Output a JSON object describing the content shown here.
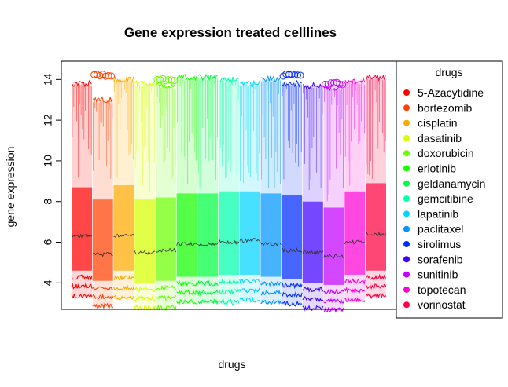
{
  "chart_data": {
    "type": "box",
    "title": "Gene expression treated celllines",
    "xlabel": "drugs",
    "ylabel": "gene expression",
    "ylim": [
      2.7,
      14.9
    ],
    "yticks": [
      4,
      6,
      8,
      10,
      12,
      14
    ],
    "ytick_labels": [
      "4",
      "6",
      "8",
      "10",
      "12",
      "14"
    ],
    "legend": {
      "title": "drugs",
      "placement": "right"
    },
    "series": [
      {
        "name": "5-Azacytidine",
        "color": "#ff0000",
        "q1": 4.6,
        "median": 6.3,
        "q3": 8.7,
        "whisker_low": 3.3,
        "whisker_high": 13.8,
        "outlier_high": null
      },
      {
        "name": "bortezomib",
        "color": "#ff4000",
        "q1": 4.1,
        "median": 5.4,
        "q3": 8.1,
        "whisker_low": 2.8,
        "whisker_high": 13.0,
        "outlier_high": 14.2
      },
      {
        "name": "cisplatin",
        "color": "#ffaa00",
        "q1": 4.6,
        "median": 6.3,
        "q3": 8.8,
        "whisker_low": 3.2,
        "whisker_high": 14.0,
        "outlier_high": null
      },
      {
        "name": "dasatinib",
        "color": "#d5ff00",
        "q1": 4.0,
        "median": 5.5,
        "q3": 8.1,
        "whisker_low": 2.7,
        "whisker_high": 13.8,
        "outlier_high": null
      },
      {
        "name": "doxorubicin",
        "color": "#6aff00",
        "q1": 4.1,
        "median": 5.6,
        "q3": 8.2,
        "whisker_low": 2.7,
        "whisker_high": 13.7,
        "outlier_high": 14.0
      },
      {
        "name": "erlotinib",
        "color": "#15ff00",
        "q1": 4.3,
        "median": 5.9,
        "q3": 8.4,
        "whisker_low": 3.0,
        "whisker_high": 14.1,
        "outlier_high": null
      },
      {
        "name": "geldanamycin",
        "color": "#00ff40",
        "q1": 4.3,
        "median": 5.9,
        "q3": 8.4,
        "whisker_low": 3.0,
        "whisker_high": 14.1,
        "outlier_high": null
      },
      {
        "name": "gemcitibine",
        "color": "#00ffaa",
        "q1": 4.4,
        "median": 6.0,
        "q3": 8.5,
        "whisker_low": 3.0,
        "whisker_high": 14.0,
        "outlier_high": null
      },
      {
        "name": "lapatinib",
        "color": "#00d5ff",
        "q1": 4.4,
        "median": 6.1,
        "q3": 8.5,
        "whisker_low": 3.1,
        "whisker_high": 13.8,
        "outlier_high": null
      },
      {
        "name": "paclitaxel",
        "color": "#0095ff",
        "q1": 4.3,
        "median": 5.9,
        "q3": 8.4,
        "whisker_low": 3.0,
        "whisker_high": 14.0,
        "outlier_high": null
      },
      {
        "name": "sirolimus",
        "color": "#002aff",
        "q1": 4.2,
        "median": 5.6,
        "q3": 8.3,
        "whisker_low": 2.9,
        "whisker_high": 13.8,
        "outlier_high": 14.2
      },
      {
        "name": "sorafenib",
        "color": "#4000ff",
        "q1": 4.0,
        "median": 5.5,
        "q3": 8.0,
        "whisker_low": 2.7,
        "whisker_high": 13.7,
        "outlier_high": null
      },
      {
        "name": "sunitinib",
        "color": "#c000ff",
        "q1": 3.9,
        "median": 5.3,
        "q3": 7.7,
        "whisker_low": 2.6,
        "whisker_high": 13.6,
        "outlier_high": 13.8
      },
      {
        "name": "topotecan",
        "color": "#ff00d5",
        "q1": 4.4,
        "median": 6.0,
        "q3": 8.5,
        "whisker_low": 3.1,
        "whisker_high": 13.9,
        "outlier_high": null
      },
      {
        "name": "vorinostat",
        "color": "#ff0040",
        "q1": 4.6,
        "median": 6.4,
        "q3": 8.9,
        "whisker_low": 3.3,
        "whisker_high": 14.1,
        "outlier_high": null
      }
    ]
  }
}
